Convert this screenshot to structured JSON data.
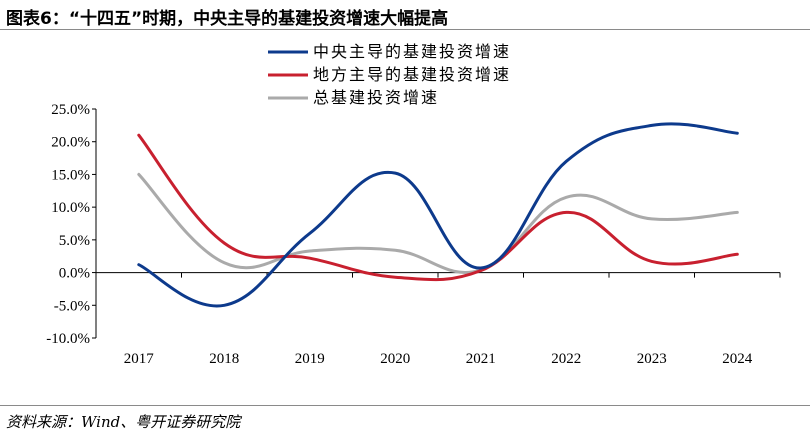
{
  "figure": {
    "title": "图表6：“十四五”时期，中央主导的基建投资增速大幅提高",
    "source": "资料来源：Wind、粤开证券研究院"
  },
  "chart_data": {
    "type": "line",
    "title": "",
    "xlabel": "",
    "ylabel": "",
    "categories": [
      "2017",
      "2018",
      "2019",
      "2020",
      "2021",
      "2022",
      "2023",
      "2024"
    ],
    "ylim": [
      -10,
      25
    ],
    "yticks": [
      -10,
      -5,
      0,
      5,
      10,
      15,
      20,
      25
    ],
    "ytick_labels": [
      "-10.0%",
      "-5.0%",
      "0.0%",
      "5.0%",
      "10.0%",
      "15.0%",
      "20.0%",
      "25.0%"
    ],
    "grid": false,
    "legend_position": "top",
    "smooth": true,
    "series": [
      {
        "name": "中央主导的基建投资增速",
        "color": "#0d3a8c",
        "values": [
          1.2,
          -5.0,
          6.0,
          15.2,
          0.7,
          17.0,
          22.5,
          21.3
        ]
      },
      {
        "name": "地方主导的基建投资增速",
        "color": "#c8202f",
        "values": [
          21.0,
          4.5,
          2.2,
          -0.7,
          0.3,
          9.2,
          1.7,
          2.8
        ]
      },
      {
        "name": "总基建投资增速",
        "color": "#aaaaaa",
        "values": [
          15.0,
          1.5,
          3.3,
          3.4,
          0.4,
          11.5,
          8.2,
          9.2
        ]
      }
    ]
  }
}
